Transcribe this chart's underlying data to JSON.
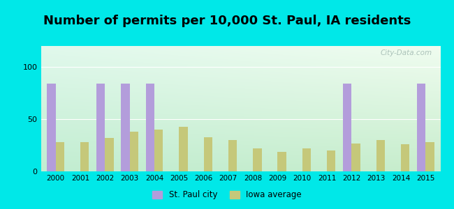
{
  "title": "Number of permits per 10,000 St. Paul, IA residents",
  "years": [
    2000,
    2001,
    2002,
    2003,
    2004,
    2005,
    2006,
    2007,
    2008,
    2009,
    2010,
    2011,
    2012,
    2013,
    2014,
    2015
  ],
  "st_paul": [
    84,
    0,
    84,
    84,
    84,
    0,
    0,
    0,
    0,
    0,
    0,
    0,
    84,
    0,
    0,
    84
  ],
  "iowa_avg": [
    28,
    28,
    32,
    38,
    40,
    43,
    33,
    30,
    22,
    19,
    22,
    20,
    27,
    30,
    26,
    28
  ],
  "st_paul_color": "#b39ddb",
  "iowa_avg_color": "#c5c87a",
  "background_color": "#00e8e8",
  "ylim": [
    0,
    120
  ],
  "yticks": [
    0,
    50,
    100
  ],
  "bar_width": 0.35,
  "title_fontsize": 13,
  "legend_label_st_paul": "St. Paul city",
  "legend_label_iowa": "Iowa average",
  "watermark": "City-Data.com",
  "grad_top": "#f0faf0",
  "grad_bottom": "#c8eec8",
  "grad_left_tint": "#b0e8e0"
}
